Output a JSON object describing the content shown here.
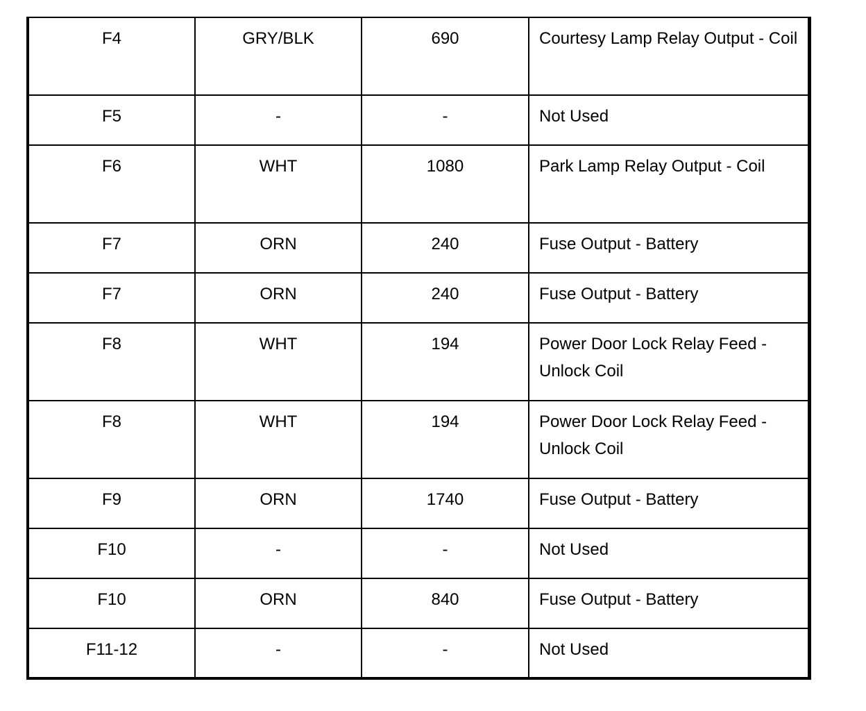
{
  "rows": [
    {
      "pin": "F4",
      "color": "GRY/BLK",
      "circuit": "690",
      "function": "Courtesy Lamp Relay Output - Coil",
      "tall": true
    },
    {
      "pin": "F5",
      "color": "-",
      "circuit": "-",
      "function": "Not Used",
      "tall": false
    },
    {
      "pin": "F6",
      "color": "WHT",
      "circuit": "1080",
      "function": "Park Lamp Relay Output - Coil",
      "tall": true
    },
    {
      "pin": "F7",
      "color": "ORN",
      "circuit": "240",
      "function": "Fuse Output - Battery",
      "tall": false
    },
    {
      "pin": "F7",
      "color": "ORN",
      "circuit": "240",
      "function": "Fuse Output - Battery",
      "tall": false
    },
    {
      "pin": "F8",
      "color": "WHT",
      "circuit": "194",
      "function": "Power Door Lock Relay Feed - Unlock Coil",
      "tall": true
    },
    {
      "pin": "F8",
      "color": "WHT",
      "circuit": "194",
      "function": "Power Door Lock Relay Feed - Unlock Coil",
      "tall": true
    },
    {
      "pin": "F9",
      "color": "ORN",
      "circuit": "1740",
      "function": "Fuse Output - Battery",
      "tall": false
    },
    {
      "pin": "F10",
      "color": "-",
      "circuit": "-",
      "function": "Not Used",
      "tall": false
    },
    {
      "pin": "F10",
      "color": "ORN",
      "circuit": "840",
      "function": "Fuse Output - Battery",
      "tall": false
    },
    {
      "pin": "F11-12",
      "color": "-",
      "circuit": "-",
      "function": "Not Used",
      "tall": false
    }
  ]
}
